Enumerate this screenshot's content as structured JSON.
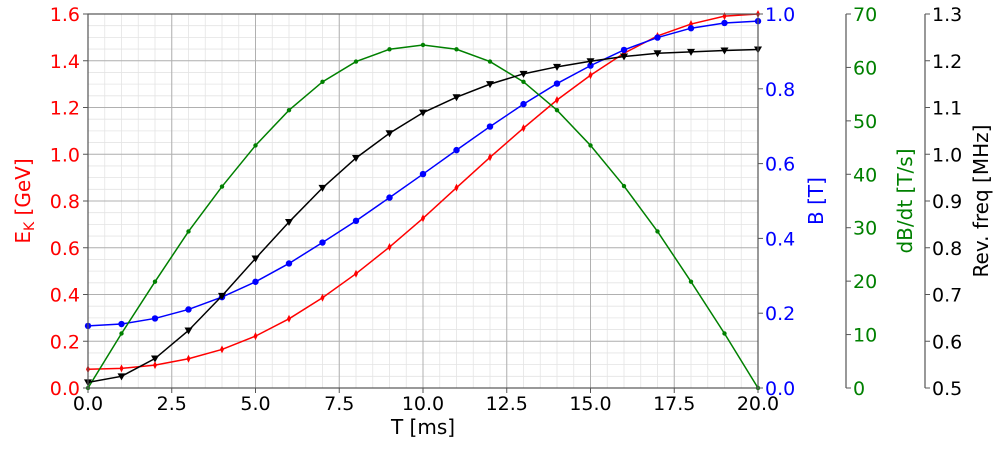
{
  "chart_data": {
    "type": "line",
    "xlabel": "T [ms]",
    "xlim": [
      0,
      20
    ],
    "xticks": [
      "0.0",
      "2.5",
      "5.0",
      "7.5",
      "10.0",
      "12.5",
      "15.0",
      "17.5",
      "20.0"
    ],
    "grid": true,
    "x": [
      0,
      1,
      2,
      3,
      4,
      5,
      6,
      7,
      8,
      9,
      10,
      11,
      12,
      13,
      14,
      15,
      16,
      17,
      18,
      19,
      20
    ],
    "axes": [
      {
        "id": "ek",
        "label_main": "E",
        "label_sub": "K",
        "label_rest": " [GeV]",
        "color": "#ff0000",
        "ylim": [
          0,
          1.6
        ],
        "ticks": [
          "0.0",
          "0.2",
          "0.4",
          "0.6",
          "0.8",
          "1.0",
          "1.2",
          "1.4",
          "1.6"
        ]
      },
      {
        "id": "b",
        "label": "B [T]",
        "color": "#0000ff",
        "ylim": [
          0,
          1.0
        ],
        "ticks": [
          "0.0",
          "0.2",
          "0.4",
          "0.6",
          "0.8",
          "1.0"
        ]
      },
      {
        "id": "dbdt",
        "label": "dB/dt [T/s]",
        "color": "#008000",
        "ylim": [
          0,
          70
        ],
        "ticks": [
          "0",
          "10",
          "20",
          "30",
          "40",
          "50",
          "60",
          "70"
        ]
      },
      {
        "id": "freq",
        "label": "Rev. freq [MHz]",
        "color": "#000000",
        "ylim": [
          0.5,
          1.3
        ],
        "ticks": [
          "0.5",
          "0.6",
          "0.7",
          "0.8",
          "0.9",
          "1.0",
          "1.1",
          "1.2",
          "1.3"
        ]
      }
    ],
    "series": [
      {
        "name": "E_K",
        "axis": "ek",
        "color": "#ff0000",
        "marker": "diamond",
        "values": [
          0.08,
          0.084,
          0.098,
          0.125,
          0.165,
          0.222,
          0.296,
          0.386,
          0.489,
          0.603,
          0.726,
          0.857,
          0.987,
          1.112,
          1.232,
          1.338,
          1.432,
          1.506,
          1.557,
          1.591,
          1.6
        ]
      },
      {
        "name": "B",
        "axis": "b",
        "color": "#0000ff",
        "marker": "circle",
        "values": [
          0.166,
          0.171,
          0.186,
          0.21,
          0.243,
          0.284,
          0.333,
          0.389,
          0.447,
          0.509,
          0.572,
          0.636,
          0.699,
          0.759,
          0.814,
          0.862,
          0.904,
          0.937,
          0.962,
          0.976,
          0.981
        ]
      },
      {
        "name": "dB/dt",
        "axis": "dbdt",
        "color": "#008000",
        "marker": "star",
        "values": [
          0,
          10.2,
          19.9,
          29.3,
          37.7,
          45.4,
          52.0,
          57.3,
          61.1,
          63.4,
          64.2,
          63.4,
          61.1,
          57.3,
          52.0,
          45.4,
          37.8,
          29.3,
          19.9,
          10.2,
          0
        ]
      },
      {
        "name": "Rev. freq",
        "axis": "freq",
        "color": "#000000",
        "marker": "triangle-down",
        "values": [
          0.512,
          0.525,
          0.563,
          0.623,
          0.697,
          0.777,
          0.855,
          0.928,
          0.992,
          1.045,
          1.089,
          1.122,
          1.15,
          1.172,
          1.187,
          1.199,
          1.209,
          1.216,
          1.219,
          1.222,
          1.224
        ]
      }
    ]
  }
}
